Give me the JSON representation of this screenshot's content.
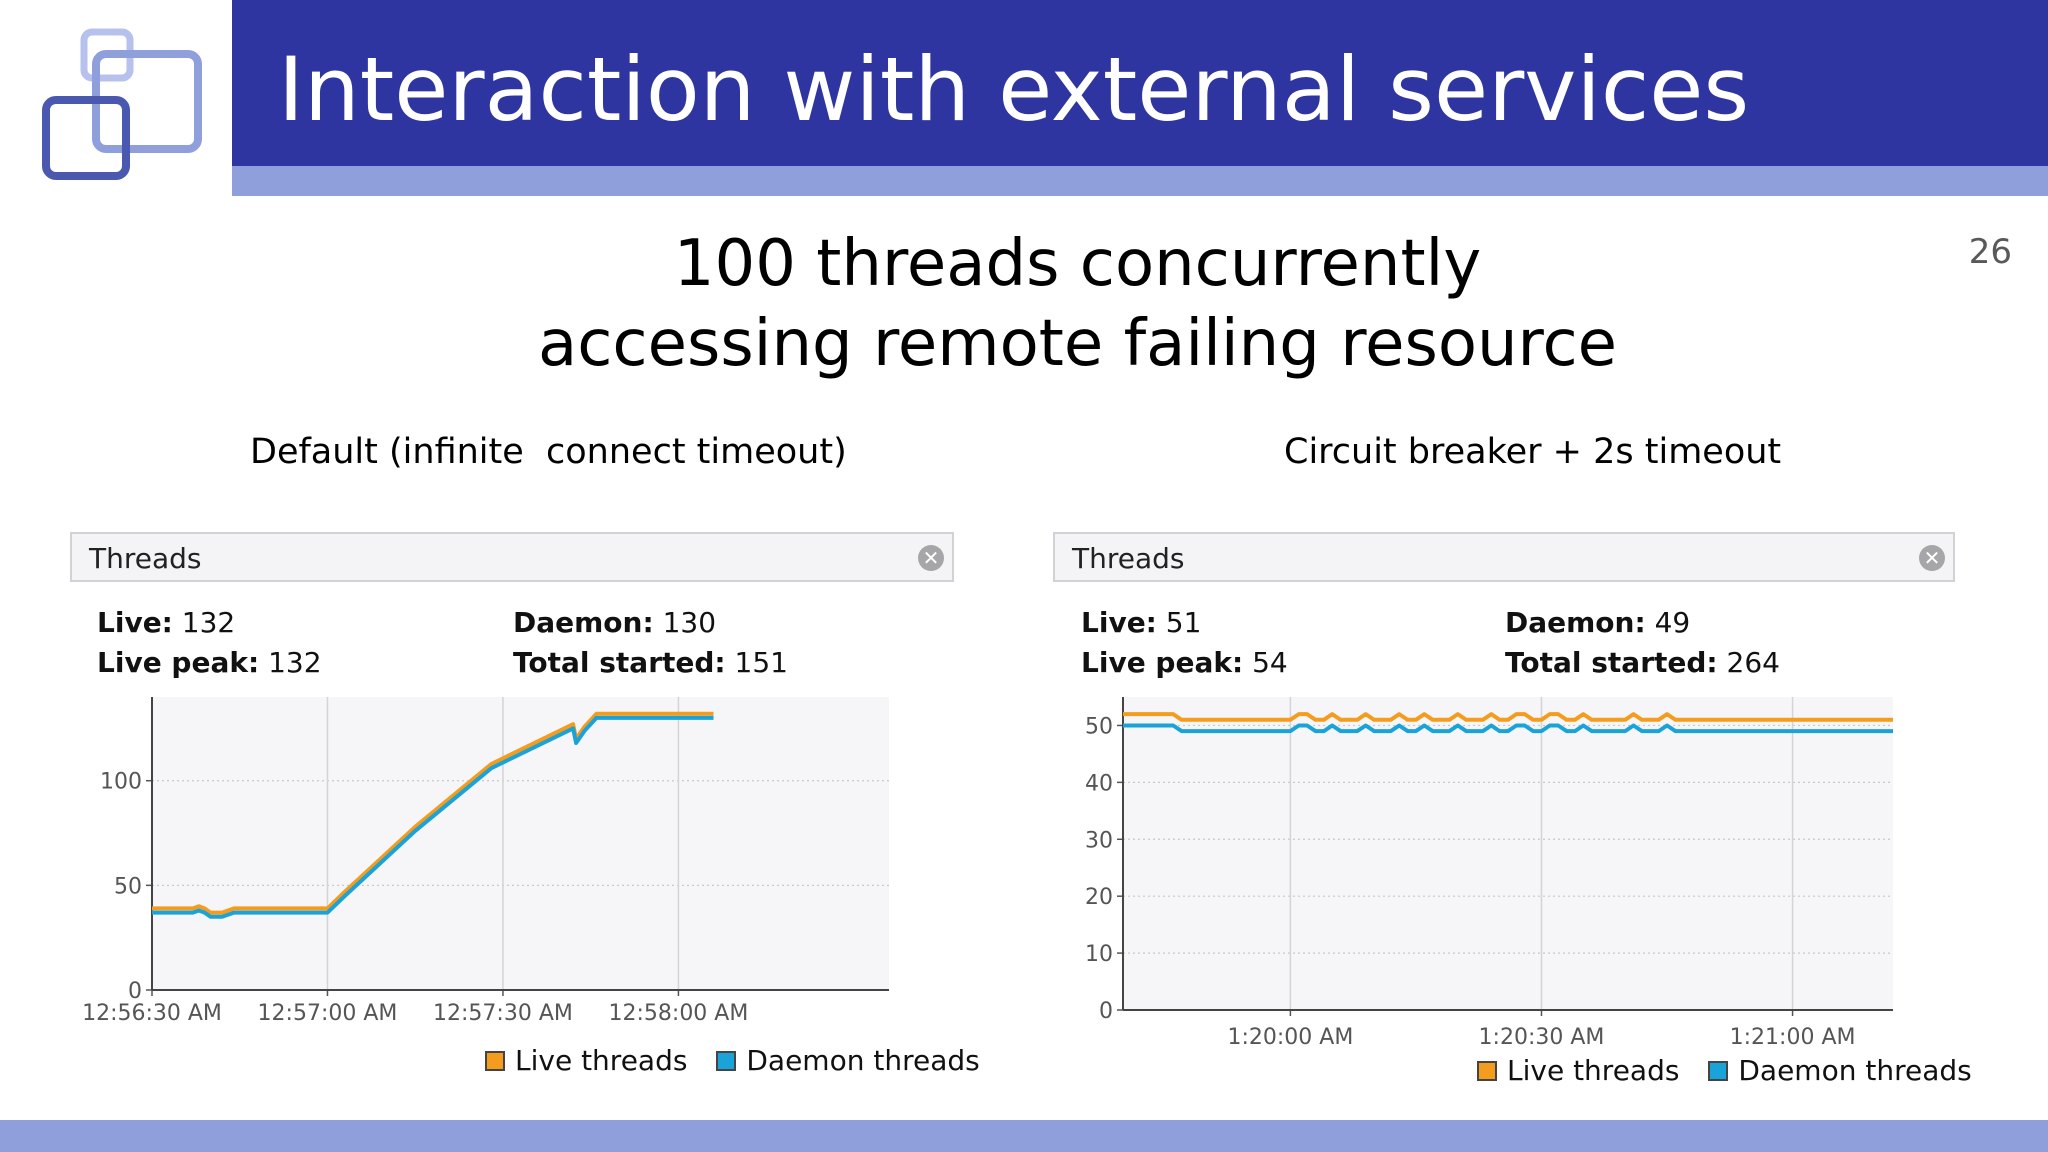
{
  "slide": {
    "title": "Interaction with external services",
    "number": "26",
    "subtitle_line1": "100 threads concurrently",
    "subtitle_line2": "accessing remote failing resource"
  },
  "colors": {
    "header": "#2e35a0",
    "header_sub": "#8f9fdb",
    "live_threads": "#f39c1e",
    "daemon_threads": "#1aa3d9"
  },
  "panels": [
    {
      "caption": "Default (infinite  connect timeout)",
      "title": "Threads",
      "stats": {
        "live_label": "Live:",
        "live_value": "132",
        "live_peak_label": "Live peak:",
        "live_peak_value": "132",
        "daemon_label": "Daemon:",
        "daemon_value": "130",
        "total_started_label": "Total started:",
        "total_started_value": "151"
      },
      "legend": [
        "Live threads",
        "Daemon threads"
      ]
    },
    {
      "caption": "Circuit breaker + 2s timeout",
      "title": "Threads",
      "stats": {
        "live_label": "Live:",
        "live_value": "51",
        "live_peak_label": "Live peak:",
        "live_peak_value": "54",
        "daemon_label": "Daemon:",
        "daemon_value": "49",
        "total_started_label": "Total started:",
        "total_started_value": "264"
      },
      "legend": [
        "Live threads",
        "Daemon threads"
      ]
    }
  ],
  "chart_data": [
    {
      "type": "line",
      "title": "Threads",
      "xlabel": "",
      "ylabel": "",
      "ylim": [
        0,
        140
      ],
      "yticks": [
        0,
        50,
        100
      ],
      "xlim": [
        "12:56:30 AM",
        "12:58:50 AM"
      ],
      "xtick_labels": [
        "12:56:30 AM",
        "12:57:00 AM",
        "12:57:30 AM",
        "12:58:00 AM"
      ],
      "xtick_seconds": [
        30,
        60,
        90,
        120
      ],
      "grid": true,
      "legend_position": "bottom-right",
      "series": [
        {
          "name": "Live threads",
          "x_seconds": [
            30,
            37,
            38,
            39,
            40,
            42,
            44,
            60,
            63,
            75,
            88,
            102,
            102.5,
            104,
            106,
            126
          ],
          "values": [
            39,
            39,
            40,
            39,
            37,
            37,
            39,
            39,
            47,
            78,
            108,
            127,
            120,
            126,
            132,
            132
          ]
        },
        {
          "name": "Daemon threads",
          "x_seconds": [
            30,
            37,
            38,
            39,
            40,
            42,
            44,
            60,
            63,
            75,
            88,
            102,
            102.5,
            104,
            106,
            126
          ],
          "values": [
            37,
            37,
            38,
            37,
            35,
            35,
            37,
            37,
            45,
            76,
            106,
            125,
            118,
            124,
            130,
            130
          ]
        }
      ]
    },
    {
      "type": "line",
      "title": "Threads",
      "xlabel": "",
      "ylabel": "",
      "ylim": [
        0,
        55
      ],
      "yticks": [
        0,
        10,
        20,
        30,
        40,
        50
      ],
      "xlim": [
        "1:19:40 AM",
        "1:21:16 AM"
      ],
      "xtick_labels": [
        "1:20:00 AM",
        "1:20:30 AM",
        "1:21:00 AM"
      ],
      "xtick_seconds": [
        20,
        50,
        80
      ],
      "grid": true,
      "legend_position": "bottom-right",
      "series": [
        {
          "name": "Live threads",
          "x_seconds": [
            0,
            6,
            7,
            20,
            21,
            22,
            23,
            24,
            25,
            26,
            27,
            28,
            29,
            30,
            31,
            32,
            33,
            34,
            35,
            36,
            37,
            38,
            39,
            40,
            41,
            42,
            43,
            44,
            45,
            46,
            47,
            48,
            49,
            50,
            51,
            52,
            53,
            54,
            55,
            56,
            57,
            58,
            59,
            60,
            61,
            62,
            63,
            64,
            65,
            66,
            67,
            68,
            69,
            70,
            92
          ],
          "values": [
            52,
            52,
            51,
            51,
            52,
            52,
            51,
            51,
            52,
            51,
            51,
            51,
            52,
            51,
            51,
            51,
            52,
            51,
            51,
            52,
            51,
            51,
            51,
            52,
            51,
            51,
            51,
            52,
            51,
            51,
            52,
            52,
            51,
            51,
            52,
            52,
            51,
            51,
            52,
            51,
            51,
            51,
            51,
            51,
            52,
            51,
            51,
            51,
            52,
            51,
            51,
            51,
            51,
            51,
            51
          ]
        },
        {
          "name": "Daemon threads",
          "x_seconds": [
            0,
            6,
            7,
            20,
            21,
            22,
            23,
            24,
            25,
            26,
            27,
            28,
            29,
            30,
            31,
            32,
            33,
            34,
            35,
            36,
            37,
            38,
            39,
            40,
            41,
            42,
            43,
            44,
            45,
            46,
            47,
            48,
            49,
            50,
            51,
            52,
            53,
            54,
            55,
            56,
            57,
            58,
            59,
            60,
            61,
            62,
            63,
            64,
            65,
            66,
            67,
            68,
            69,
            70,
            92
          ],
          "values": [
            50,
            50,
            49,
            49,
            50,
            50,
            49,
            49,
            50,
            49,
            49,
            49,
            50,
            49,
            49,
            49,
            50,
            49,
            49,
            50,
            49,
            49,
            49,
            50,
            49,
            49,
            49,
            50,
            49,
            49,
            50,
            50,
            49,
            49,
            50,
            50,
            49,
            49,
            50,
            49,
            49,
            49,
            49,
            49,
            50,
            49,
            49,
            49,
            50,
            49,
            49,
            49,
            49,
            49,
            49
          ]
        }
      ]
    }
  ]
}
